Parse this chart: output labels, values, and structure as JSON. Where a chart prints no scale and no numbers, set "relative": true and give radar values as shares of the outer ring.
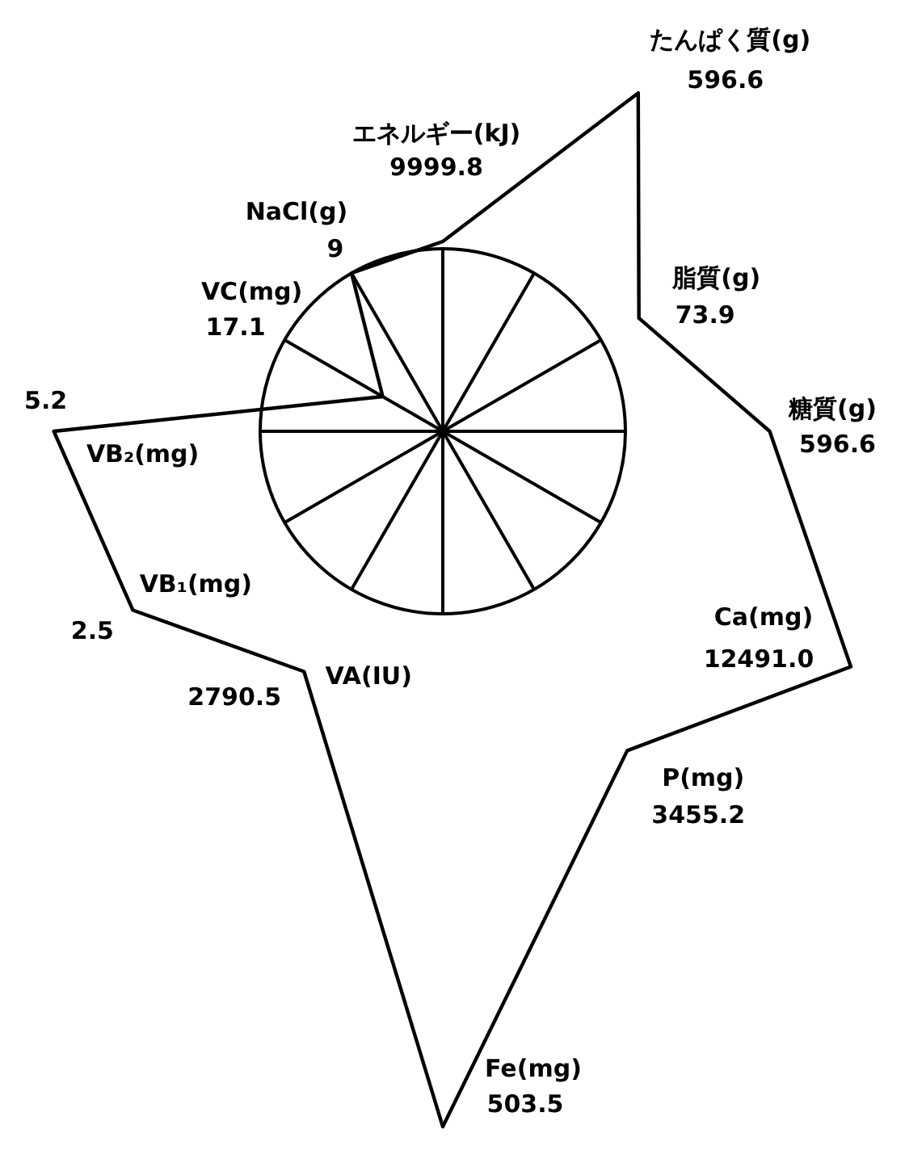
{
  "chart_data": {
    "type": "radar",
    "categories": [
      "エネルギー(kJ)",
      "たんぱく質(g)",
      "脂質(g)",
      "糖質(g)",
      "Ca(mg)",
      "P(mg)",
      "Fe(mg)",
      "VA(IU)",
      "VB₁(mg)",
      "VB₂(mg)",
      "VC(mg)",
      "NaCl(g)"
    ],
    "values": [
      1.04,
      2.14,
      1.24,
      1.79,
      2.58,
      2.02,
      3.81,
      1.52,
      1.96,
      2.13,
      0.38,
      1.0
    ],
    "color": "#000000",
    "relative": true,
    "grid": true,
    "annotations": [
      "9999.8",
      "596.6",
      "73.9",
      "596.6",
      "12491.0",
      "3455.2",
      "503.5",
      "2790.5",
      "2.5",
      "5.2",
      "17.1",
      "9"
    ]
  }
}
